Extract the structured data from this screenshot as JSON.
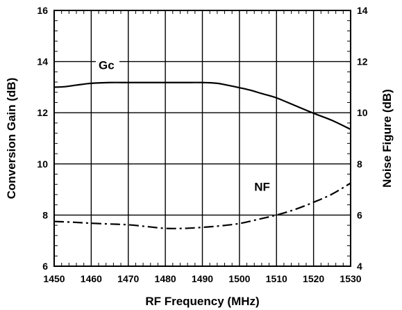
{
  "chart_data": {
    "type": "line",
    "title": "",
    "xlabel": "RF Frequency (MHz)",
    "ylabel_left": "Conversion Gain (dB)",
    "ylabel_right": "Noise Figure (dB)",
    "xlim": [
      1450,
      1530
    ],
    "ylim_left": [
      6,
      16
    ],
    "ylim_right": [
      4,
      14
    ],
    "x_ticks": [
      1450,
      1460,
      1470,
      1480,
      1490,
      1500,
      1510,
      1520,
      1530
    ],
    "y_ticks_left": [
      6,
      8,
      10,
      12,
      14,
      16
    ],
    "y_ticks_right": [
      4,
      6,
      8,
      10,
      12,
      14
    ],
    "grid": true,
    "series": [
      {
        "name": "Gc",
        "axis": "left",
        "style": "solid",
        "color": "#000000",
        "x": [
          1450,
          1453,
          1456,
          1460,
          1465,
          1470,
          1475,
          1480,
          1485,
          1490,
          1494,
          1497,
          1500,
          1503,
          1506,
          1510,
          1515,
          1520,
          1525,
          1530
        ],
        "y": [
          13.0,
          13.02,
          13.08,
          13.15,
          13.18,
          13.18,
          13.18,
          13.18,
          13.18,
          13.18,
          13.15,
          13.07,
          12.98,
          12.88,
          12.75,
          12.58,
          12.28,
          11.98,
          11.7,
          11.35
        ]
      },
      {
        "name": "NF",
        "axis": "right",
        "style": "dashdot",
        "color": "#000000",
        "x": [
          1450,
          1455,
          1460,
          1465,
          1470,
          1475,
          1480,
          1485,
          1490,
          1495,
          1500,
          1505,
          1510,
          1515,
          1520,
          1525,
          1530
        ],
        "y": [
          5.75,
          5.72,
          5.68,
          5.65,
          5.62,
          5.55,
          5.48,
          5.48,
          5.52,
          5.58,
          5.67,
          5.83,
          6.0,
          6.22,
          6.5,
          6.82,
          7.25
        ]
      }
    ],
    "annotations": [
      {
        "text": "Gc",
        "series": "Gc"
      },
      {
        "text": "NF",
        "series": "NF"
      }
    ]
  }
}
